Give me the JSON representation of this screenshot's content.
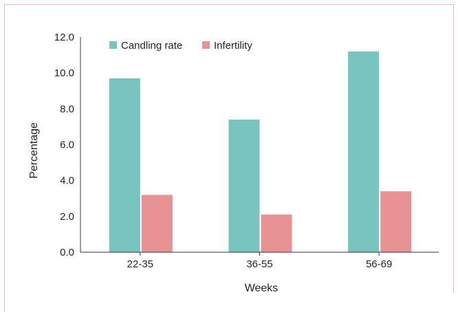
{
  "chart_data": {
    "type": "bar",
    "title": "",
    "xlabel": "Weeks",
    "ylabel": "Percentage",
    "categories": [
      "22-35",
      "36-55",
      "56-69"
    ],
    "ylim": [
      0,
      12
    ],
    "yticks": [
      "0.0",
      "2.0",
      "4.0",
      "6.0",
      "8.0",
      "10.0",
      "12.0"
    ],
    "grid": false,
    "legend_position": "top-left",
    "series": [
      {
        "name": "Candling rate",
        "color": "#78c4be",
        "values": [
          9.7,
          7.4,
          11.2
        ]
      },
      {
        "name": "Infertility",
        "color": "#e99294",
        "values": [
          3.2,
          2.1,
          3.4
        ]
      }
    ]
  }
}
